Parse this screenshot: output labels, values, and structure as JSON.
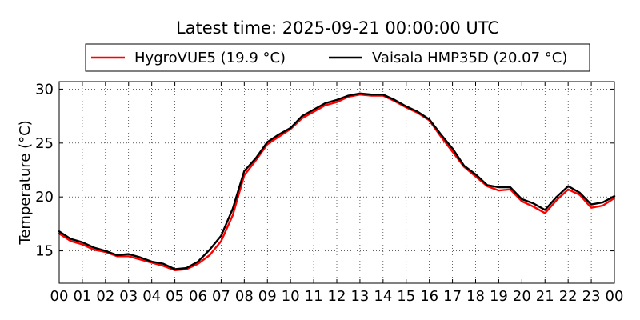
{
  "chart_data": {
    "type": "line",
    "title": "Latest time: 2025-09-21 00:00:00 UTC",
    "xlabel": "",
    "ylabel": "Temperature (°C)",
    "xlim": [
      0,
      24
    ],
    "ylim": [
      12,
      30.7
    ],
    "grid": true,
    "legend_position": "top-center",
    "x_ticks": [
      0,
      1,
      2,
      3,
      4,
      5,
      6,
      7,
      8,
      9,
      10,
      11,
      12,
      13,
      14,
      15,
      16,
      17,
      18,
      19,
      20,
      21,
      22,
      23,
      24
    ],
    "x_tick_labels": [
      "00",
      "01",
      "02",
      "03",
      "04",
      "05",
      "06",
      "07",
      "08",
      "09",
      "10",
      "11",
      "12",
      "13",
      "14",
      "15",
      "16",
      "17",
      "18",
      "19",
      "20",
      "21",
      "22",
      "23",
      "00"
    ],
    "y_ticks": [
      15,
      20,
      25,
      30
    ],
    "y_tick_labels": [
      "15",
      "20",
      "25",
      "30"
    ],
    "x": [
      0,
      0.5,
      1,
      1.5,
      2,
      2.5,
      3,
      3.5,
      4,
      4.5,
      5,
      5.5,
      6,
      6.5,
      7,
      7.5,
      8,
      8.5,
      9,
      9.5,
      10,
      10.5,
      11,
      11.5,
      12,
      12.5,
      13,
      13.5,
      14,
      14.5,
      15,
      15.5,
      16,
      16.5,
      17,
      17.5,
      18,
      18.5,
      19,
      19.5,
      20,
      20.5,
      21,
      21.5,
      22,
      22.5,
      23,
      23.5,
      24
    ],
    "series": [
      {
        "name": "HygroVUE5 (19.9 °C)",
        "color": "#ff0000",
        "values": [
          16.6,
          15.9,
          15.6,
          15.1,
          14.9,
          14.5,
          14.5,
          14.2,
          13.9,
          13.6,
          13.2,
          13.3,
          13.8,
          14.6,
          15.9,
          18.3,
          22.0,
          23.4,
          24.9,
          25.6,
          26.3,
          27.3,
          27.9,
          28.5,
          28.8,
          29.3,
          29.5,
          29.4,
          29.4,
          28.9,
          28.3,
          27.8,
          27.1,
          25.6,
          24.2,
          22.8,
          21.9,
          21.0,
          20.6,
          20.7,
          19.6,
          19.1,
          18.5,
          19.7,
          20.7,
          20.2,
          19.0,
          19.2,
          19.9
        ]
      },
      {
        "name": "Vaisala HMP35D (20.07 °C)",
        "color": "#000000",
        "values": [
          16.8,
          16.1,
          15.8,
          15.3,
          15.0,
          14.6,
          14.7,
          14.4,
          14.0,
          13.8,
          13.3,
          13.4,
          14.0,
          15.1,
          16.4,
          18.9,
          22.4,
          23.6,
          25.1,
          25.8,
          26.4,
          27.5,
          28.1,
          28.7,
          29.0,
          29.4,
          29.6,
          29.5,
          29.5,
          29.0,
          28.4,
          27.9,
          27.2,
          25.8,
          24.5,
          22.9,
          22.1,
          21.1,
          20.9,
          20.9,
          19.8,
          19.4,
          18.8,
          20.0,
          21.0,
          20.4,
          19.3,
          19.5,
          20.07
        ]
      }
    ]
  }
}
